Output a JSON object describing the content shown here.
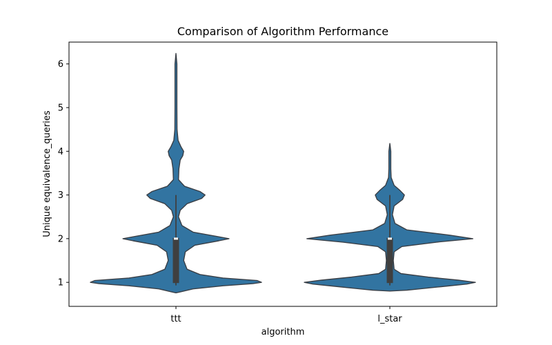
{
  "chart_data": {
    "type": "violin",
    "title": "Comparison of Algorithm Performance",
    "xlabel": "algorithm",
    "ylabel": "Unique equivalence_queries",
    "categories": [
      "ttt",
      "l_star"
    ],
    "ylim": [
      0.45,
      6.5
    ],
    "yticks": [
      1,
      2,
      3,
      4,
      5,
      6
    ],
    "grid": false,
    "legend": "none",
    "colors": {
      "fill": "#3274a1",
      "edge": "#3a3f46",
      "box": "#3f3f3f",
      "median": "#ffffff"
    },
    "series": [
      {
        "category": "ttt",
        "density": [
          [
            0.76,
            0.0
          ],
          [
            0.78,
            0.05
          ],
          [
            0.85,
            0.2
          ],
          [
            0.92,
            0.55
          ],
          [
            0.97,
            0.9
          ],
          [
            1.0,
            1.0
          ],
          [
            1.04,
            0.95
          ],
          [
            1.1,
            0.55
          ],
          [
            1.18,
            0.28
          ],
          [
            1.3,
            0.13
          ],
          [
            1.5,
            0.09
          ],
          [
            1.7,
            0.11
          ],
          [
            1.85,
            0.22
          ],
          [
            1.95,
            0.5
          ],
          [
            2.0,
            0.62
          ],
          [
            2.05,
            0.48
          ],
          [
            2.15,
            0.2
          ],
          [
            2.3,
            0.07
          ],
          [
            2.5,
            0.03
          ],
          [
            2.65,
            0.05
          ],
          [
            2.8,
            0.13
          ],
          [
            2.92,
            0.3
          ],
          [
            3.0,
            0.34
          ],
          [
            3.08,
            0.28
          ],
          [
            3.2,
            0.1
          ],
          [
            3.35,
            0.03
          ],
          [
            3.6,
            0.035
          ],
          [
            3.8,
            0.05
          ],
          [
            3.9,
            0.08
          ],
          [
            4.0,
            0.09
          ],
          [
            4.1,
            0.06
          ],
          [
            4.25,
            0.025
          ],
          [
            4.5,
            0.013
          ],
          [
            5.0,
            0.011
          ],
          [
            5.5,
            0.011
          ],
          [
            6.0,
            0.011
          ],
          [
            6.24,
            0.0
          ]
        ],
        "q1": 1.0,
        "median": 2.0,
        "q3": 2.0,
        "whisker_low": 0.93,
        "whisker_high": 3.0
      },
      {
        "category": "l_star",
        "density": [
          [
            0.8,
            0.0
          ],
          [
            0.82,
            0.2
          ],
          [
            0.9,
            0.6
          ],
          [
            0.96,
            0.9
          ],
          [
            1.0,
            1.0
          ],
          [
            1.05,
            0.8
          ],
          [
            1.12,
            0.45
          ],
          [
            1.2,
            0.13
          ],
          [
            1.3,
            0.05
          ],
          [
            1.5,
            0.04
          ],
          [
            1.7,
            0.05
          ],
          [
            1.82,
            0.14
          ],
          [
            1.92,
            0.55
          ],
          [
            2.0,
            0.97
          ],
          [
            2.08,
            0.7
          ],
          [
            2.2,
            0.2
          ],
          [
            2.35,
            0.06
          ],
          [
            2.55,
            0.03
          ],
          [
            2.75,
            0.05
          ],
          [
            2.9,
            0.15
          ],
          [
            3.0,
            0.17
          ],
          [
            3.1,
            0.12
          ],
          [
            3.22,
            0.05
          ],
          [
            3.4,
            0.015
          ],
          [
            3.6,
            0.011
          ],
          [
            4.0,
            0.011
          ],
          [
            4.18,
            0.0
          ]
        ],
        "q1": 1.0,
        "median": 2.0,
        "q3": 2.0,
        "whisker_low": 0.93,
        "whisker_high": 3.0
      }
    ]
  }
}
